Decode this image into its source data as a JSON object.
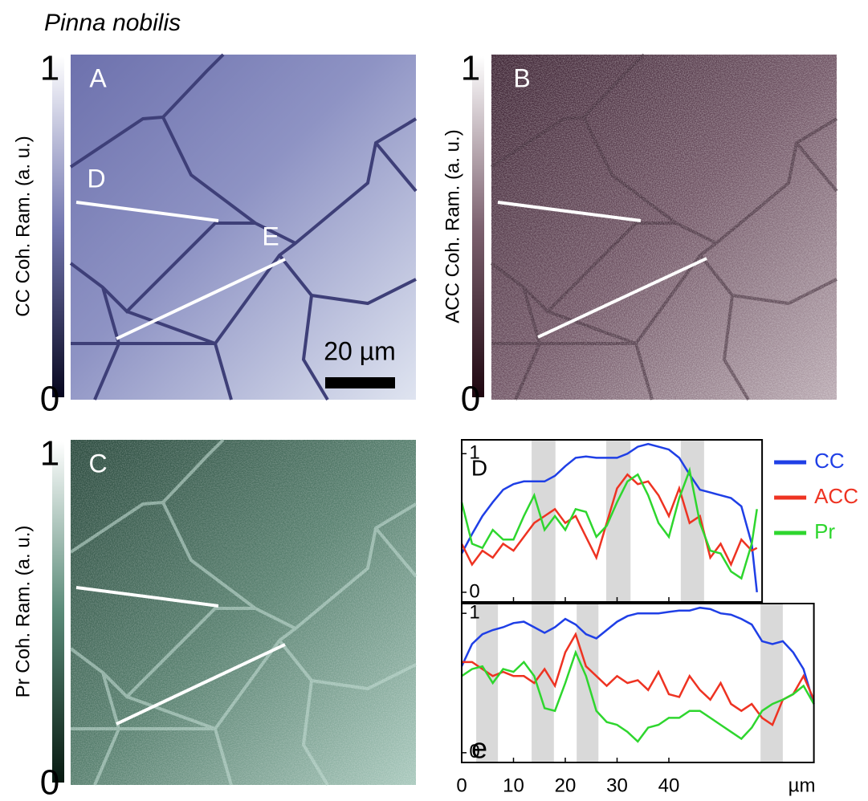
{
  "figure_title": "Pinna nobilis",
  "panels": [
    {
      "letter": "A",
      "colorbar_label": "CC Coh. Ram. (a. u.)",
      "colorbar_max": 1,
      "colorbar_min": 0,
      "line_labels": [
        "D",
        "E"
      ],
      "scale_bar": "20 µm"
    },
    {
      "letter": "B",
      "colorbar_label": "ACC Coh. Ram. (a. u.)",
      "colorbar_max": 1,
      "colorbar_min": 0
    },
    {
      "letter": "C",
      "colorbar_label": "Pr Coh. Ram. (a. u.)",
      "colorbar_max": 1,
      "colorbar_min": 0
    }
  ],
  "chart_data": [
    {
      "type": "line",
      "panel_label": "D",
      "legend_position": "right",
      "x": [
        0,
        2,
        4,
        6,
        8,
        10,
        12,
        14,
        16,
        18,
        20,
        22,
        24,
        26,
        28,
        30,
        32,
        34,
        36,
        38,
        40,
        42,
        44,
        46,
        48,
        50,
        52,
        54,
        56,
        57
      ],
      "xlim": [
        0,
        58
      ],
      "ylim": [
        -0.07,
        1.1
      ],
      "xticks": [
        10,
        20,
        30,
        40
      ],
      "yticks": [
        0,
        1
      ],
      "shaded_regions": [
        [
          13.5,
          18.1
        ],
        [
          27.9,
          32.6
        ],
        [
          42.3,
          46.8
        ]
      ],
      "series": [
        {
          "name": "CC",
          "color": "#1f3fe6",
          "values": [
            0.28,
            0.42,
            0.55,
            0.65,
            0.74,
            0.78,
            0.8,
            0.8,
            0.8,
            0.84,
            0.91,
            0.97,
            0.98,
            0.97,
            0.97,
            0.97,
            1.0,
            1.05,
            1.07,
            1.05,
            1.03,
            0.97,
            0.85,
            0.74,
            0.72,
            0.7,
            0.68,
            0.62,
            0.35,
            0.0
          ]
        },
        {
          "name": "ACC",
          "color": "#ee3322",
          "values": [
            0.35,
            0.2,
            0.3,
            0.25,
            0.35,
            0.3,
            0.4,
            0.5,
            0.55,
            0.6,
            0.5,
            0.55,
            0.4,
            0.25,
            0.5,
            0.75,
            0.85,
            0.78,
            0.8,
            0.7,
            0.55,
            0.75,
            0.5,
            0.55,
            0.25,
            0.35,
            0.2,
            0.38,
            0.3,
            0.32
          ]
        },
        {
          "name": "Pr",
          "color": "#2ed62e",
          "values": [
            0.65,
            0.35,
            0.32,
            0.45,
            0.38,
            0.38,
            0.55,
            0.7,
            0.45,
            0.55,
            0.45,
            0.6,
            0.58,
            0.4,
            0.48,
            0.65,
            0.8,
            0.85,
            0.7,
            0.5,
            0.4,
            0.68,
            0.88,
            0.5,
            0.3,
            0.28,
            0.15,
            0.1,
            0.35,
            0.6
          ]
        }
      ]
    },
    {
      "type": "line",
      "panel_label": "e",
      "xlabel": "µm",
      "x": [
        0,
        2,
        4,
        6,
        8,
        10,
        12,
        14,
        16,
        18,
        20,
        22,
        24,
        26,
        28,
        30,
        32,
        34,
        36,
        38,
        40,
        42,
        44,
        46,
        48,
        50,
        52,
        54,
        56,
        58,
        60,
        62,
        64,
        66,
        68
      ],
      "xlim": [
        0,
        68
      ],
      "ylim": [
        -0.07,
        1.07
      ],
      "xticks": [
        0,
        10,
        20,
        30,
        40
      ],
      "yticks": [
        0,
        1
      ],
      "shaded_regions": [
        [
          2.8,
          7.0
        ],
        [
          13.5,
          17.8
        ],
        [
          22.2,
          26.4
        ],
        [
          57.7,
          62.0
        ]
      ],
      "series": [
        {
          "color": "#1f3fe6",
          "values": [
            0.62,
            0.78,
            0.85,
            0.88,
            0.9,
            0.93,
            0.94,
            0.9,
            0.86,
            0.9,
            0.96,
            0.92,
            0.85,
            0.82,
            0.88,
            0.94,
            0.98,
            1.0,
            1.0,
            1.0,
            1.01,
            1.02,
            1.02,
            1.04,
            1.03,
            1.0,
            0.99,
            0.96,
            0.92,
            0.8,
            0.78,
            0.8,
            0.72,
            0.6,
            0.35
          ]
        },
        {
          "color": "#ee3322",
          "values": [
            0.65,
            0.65,
            0.6,
            0.55,
            0.58,
            0.55,
            0.55,
            0.5,
            0.6,
            0.48,
            0.72,
            0.85,
            0.62,
            0.55,
            0.48,
            0.55,
            0.5,
            0.52,
            0.45,
            0.58,
            0.42,
            0.4,
            0.55,
            0.45,
            0.38,
            0.5,
            0.35,
            0.3,
            0.35,
            0.25,
            0.2,
            0.38,
            0.42,
            0.55,
            0.38
          ]
        },
        {
          "color": "#2ed62e",
          "values": [
            0.55,
            0.6,
            0.62,
            0.5,
            0.6,
            0.58,
            0.65,
            0.55,
            0.32,
            0.3,
            0.5,
            0.72,
            0.55,
            0.3,
            0.22,
            0.2,
            0.15,
            0.08,
            0.18,
            0.2,
            0.25,
            0.25,
            0.3,
            0.3,
            0.25,
            0.2,
            0.15,
            0.1,
            0.18,
            0.3,
            0.35,
            0.38,
            0.42,
            0.48,
            0.35
          ]
        }
      ]
    }
  ]
}
